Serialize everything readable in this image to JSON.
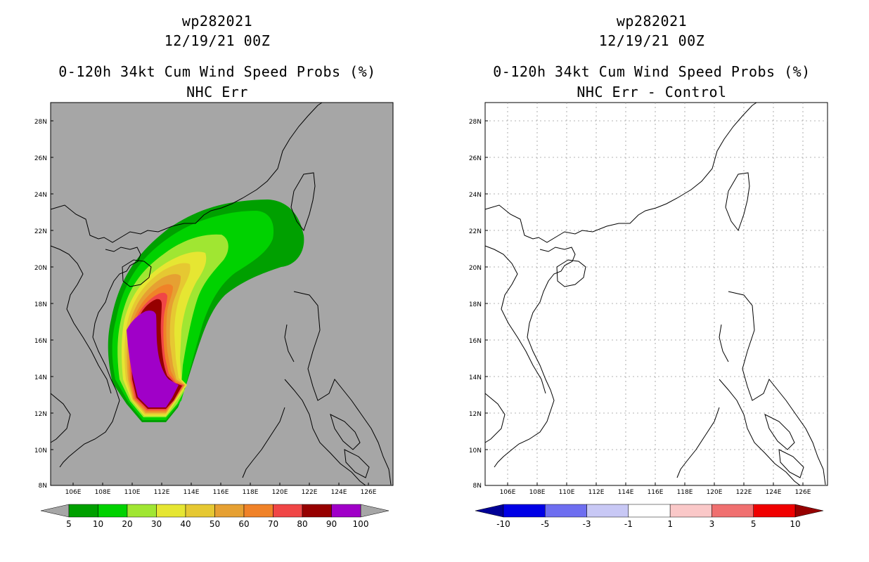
{
  "panels": [
    {
      "storm_id": "wp282021",
      "datetime": "12/19/21 00Z",
      "title": "0-120h 34kt Cum Wind Speed Probs (%)",
      "subtitle": "NHC Err",
      "background": "#a6a6a6",
      "colorbar": {
        "labels": [
          "5",
          "10",
          "20",
          "30",
          "40",
          "50",
          "60",
          "70",
          "80",
          "90",
          "100"
        ],
        "colors": [
          "#00a000",
          "#00d200",
          "#a0e632",
          "#e6e632",
          "#e6c832",
          "#e6a032",
          "#f08228",
          "#f04646",
          "#960000",
          "#a000c8"
        ],
        "end_left": "#a6a6a6",
        "end_right": "#a6a6a6"
      }
    },
    {
      "storm_id": "wp282021",
      "datetime": "12/19/21 00Z",
      "title": "0-120h 34kt Cum Wind Speed Probs (%)",
      "subtitle": "NHC Err - Control",
      "background": "#ffffff",
      "colorbar": {
        "labels": [
          "-10",
          "-5",
          "-3",
          "-1",
          "1",
          "3",
          "5",
          "10"
        ],
        "colors": [
          "#0000e6",
          "#6e6ef0",
          "#c8c8f5",
          "#ffffff",
          "#fac8c8",
          "#f07070",
          "#f00000"
        ],
        "end_left": "#000096",
        "end_right": "#960000"
      }
    }
  ],
  "map": {
    "lat_labels": [
      "28N",
      "26N",
      "24N",
      "22N",
      "20N",
      "18N",
      "16N",
      "14N",
      "12N",
      "10N",
      "8N"
    ],
    "lon_labels": [
      "106E",
      "108E",
      "110E",
      "112E",
      "114E",
      "116E",
      "118E",
      "120E",
      "122E",
      "124E",
      "126E"
    ]
  }
}
